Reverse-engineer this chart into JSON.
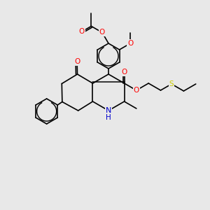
{
  "bg": "#e8e8e8",
  "C": "#000000",
  "O": "#ff0000",
  "N": "#0000cc",
  "S": "#cccc00",
  "lw": 1.2,
  "lw_dbl_inner": 1.0,
  "fs": 7.5
}
